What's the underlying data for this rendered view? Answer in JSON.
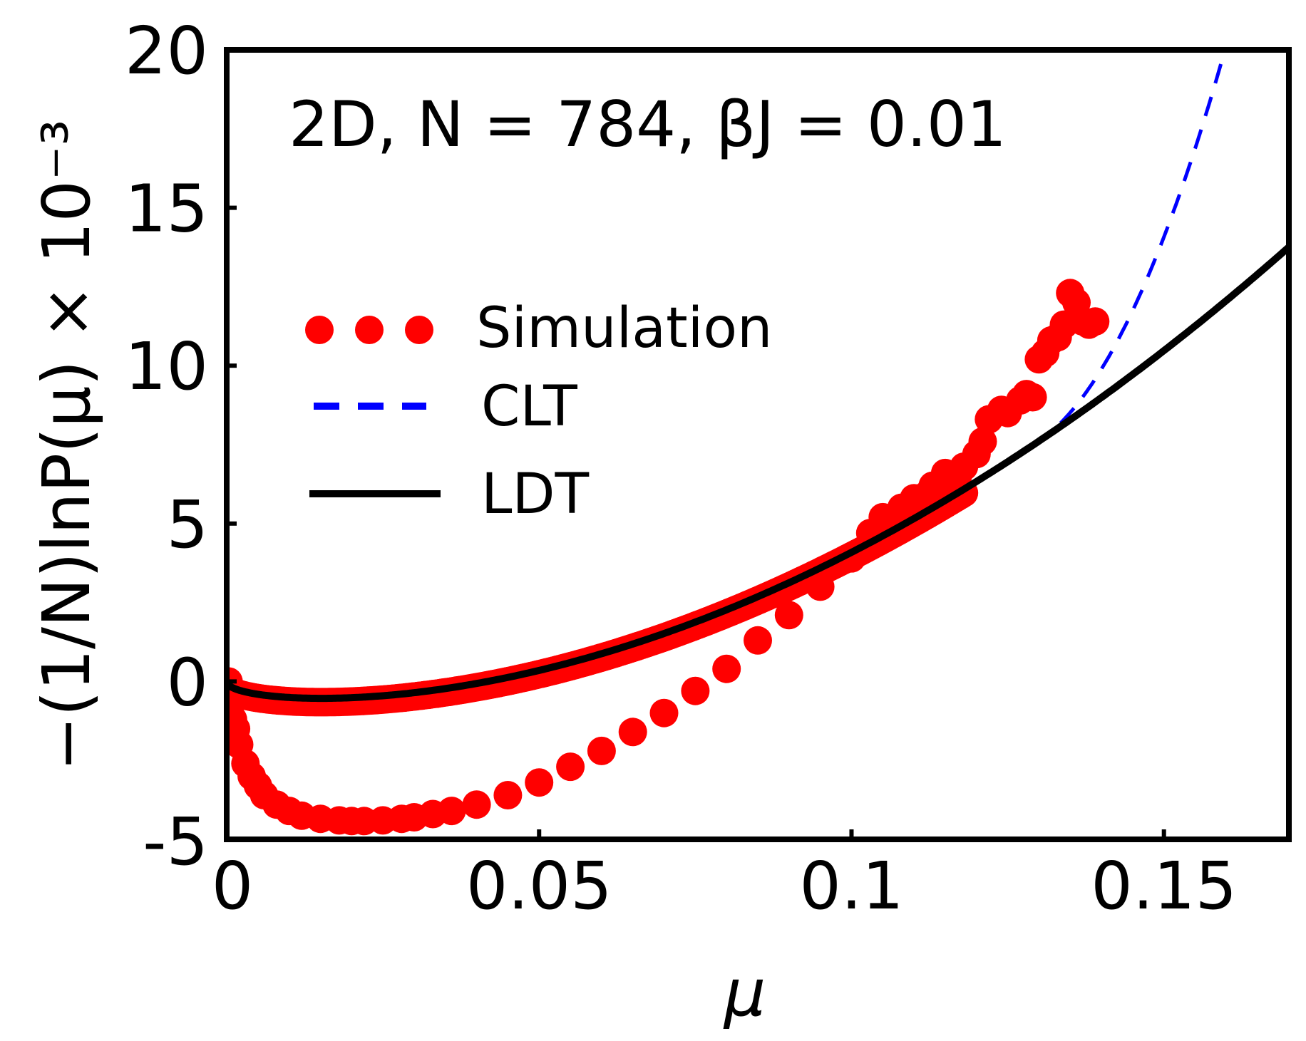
{
  "chart_data": {
    "type": "scatter",
    "annotation": "2D, N = 784, βJ = 0.01",
    "xlabel": "μ",
    "ylabel": "−(1/N)lnP(μ) × 10⁻³",
    "xlim": [
      0,
      0.17
    ],
    "ylim": [
      -5,
      20
    ],
    "x_ticks": [
      0,
      0.05,
      0.1,
      0.15
    ],
    "x_tick_labels": [
      "0",
      "0.05",
      "0.1",
      "0.15"
    ],
    "y_ticks": [
      -5,
      0,
      5,
      10,
      15,
      20
    ],
    "y_tick_labels": [
      "-5",
      "0",
      "5",
      "10",
      "15",
      "20"
    ],
    "legend_position": "center-left",
    "series": [
      {
        "name": "Simulation",
        "kind": "scatter",
        "color": "#ff0000",
        "x": [
          0.0003,
          0.0005,
          0.001,
          0.0015,
          0.002,
          0.003,
          0.004,
          0.005,
          0.006,
          0.008,
          0.01,
          0.012,
          0.015,
          0.018,
          0.02,
          0.022,
          0.025,
          0.028,
          0.03,
          0.033,
          0.036,
          0.04,
          0.045,
          0.05,
          0.055,
          0.06,
          0.065,
          0.07,
          0.075,
          0.08,
          0.085,
          0.09,
          0.095,
          0.1,
          0.103,
          0.105,
          0.108,
          0.11,
          0.112,
          0.113,
          0.115,
          0.117,
          0.118,
          0.12,
          0.121,
          0.122,
          0.124,
          0.125,
          0.127,
          0.128,
          0.129,
          0.13,
          0.131,
          0.132,
          0.133,
          0.134,
          0.135,
          0.136,
          0.137,
          0.138,
          0.139
        ],
        "y": [
          0.0,
          -0.8,
          -1.2,
          -1.5,
          -2.0,
          -2.6,
          -3.0,
          -3.3,
          -3.6,
          -3.9,
          -4.1,
          -4.25,
          -4.35,
          -4.4,
          -4.42,
          -4.42,
          -4.4,
          -4.35,
          -4.3,
          -4.2,
          -4.1,
          -3.9,
          -3.6,
          -3.2,
          -2.7,
          -2.2,
          -1.6,
          -1.0,
          -0.3,
          0.4,
          1.3,
          2.1,
          3.0,
          3.9,
          4.7,
          5.2,
          5.5,
          5.8,
          5.9,
          6.2,
          6.6,
          6.5,
          6.8,
          7.2,
          7.6,
          8.3,
          8.6,
          8.5,
          8.9,
          9.1,
          9.0,
          10.2,
          10.4,
          10.8,
          10.9,
          11.3,
          12.3,
          12.0,
          11.4,
          11.3,
          11.4
        ]
      },
      {
        "name": "CLT",
        "kind": "dashed-line",
        "color": "#0000ff"
      },
      {
        "name": "LDT",
        "kind": "line",
        "color": "#000000"
      }
    ]
  }
}
